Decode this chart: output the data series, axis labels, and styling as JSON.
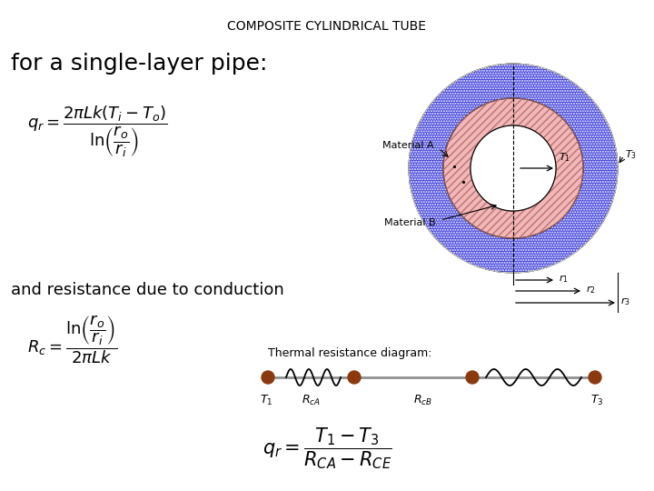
{
  "title": "COMPOSITE CYLINDRICAL TUBE",
  "subtitle": "for a single-layer pipe:",
  "text_resistance": "and resistance due to conduction",
  "thermal_label": "Thermal resistance diagram:",
  "bg_color": "#ffffff",
  "title_fontsize": 10,
  "subtitle_fontsize": 18,
  "body_fontsize": 13,
  "outer_color_hex": "#4444dd",
  "mid_color": "#f0b8b8",
  "inner_color": "#ffffff",
  "node_color": "#8B3A10",
  "wire_color": "#909090",
  "wire_lw": 2.0
}
